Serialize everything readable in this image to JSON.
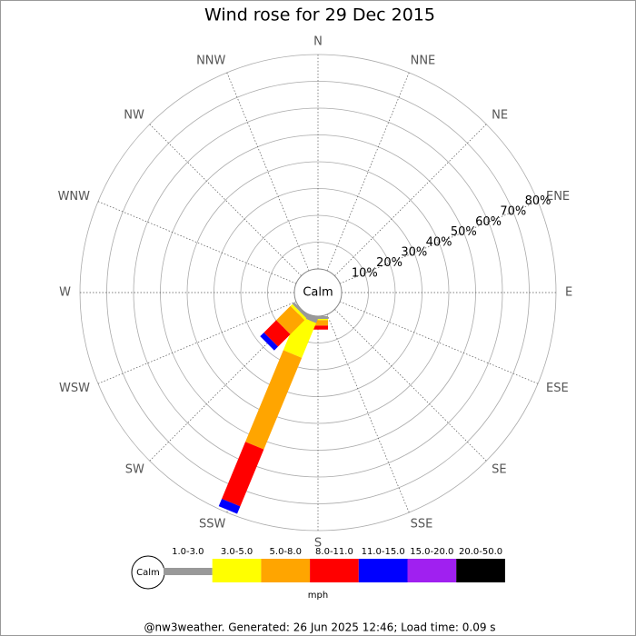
{
  "chart_data": {
    "type": "windrose",
    "title": "Wind rose for 29 Dec 2015",
    "center_label": "Calm",
    "directions": [
      "N",
      "NNE",
      "NE",
      "ENE",
      "E",
      "ESE",
      "SE",
      "SSE",
      "S",
      "SSW",
      "SW",
      "WSW",
      "W",
      "WNW",
      "NW",
      "NNW"
    ],
    "series": [
      {
        "name": "1.0-3.0",
        "color": "#999999",
        "values": [
          0,
          0,
          0,
          0,
          0,
          0,
          0,
          0,
          1,
          2,
          1,
          0,
          0,
          0,
          0,
          0
        ]
      },
      {
        "name": "3.0-5.0",
        "color": "#ffff00",
        "values": [
          0,
          0,
          0,
          0,
          0,
          0,
          0,
          0,
          0.5,
          14,
          1,
          0,
          0,
          0,
          0,
          0
        ]
      },
      {
        "name": "5.0-8.0",
        "color": "#ffa500",
        "values": [
          0,
          0,
          0,
          0,
          0,
          0,
          0,
          0,
          2,
          37,
          7.5,
          0,
          0,
          0,
          0,
          0
        ]
      },
      {
        "name": "8.0-11.0",
        "color": "#ff0000",
        "values": [
          0,
          0,
          0,
          0,
          0,
          0,
          0,
          0,
          1.5,
          23,
          6.5,
          0,
          0,
          0,
          0,
          0
        ]
      },
      {
        "name": "11.0-15.0",
        "color": "#0000ff",
        "values": [
          0,
          0,
          0,
          0,
          0,
          0,
          0,
          0,
          0,
          3,
          2,
          0,
          0,
          0,
          0,
          0
        ]
      },
      {
        "name": "15.0-20.0",
        "color": "#a020f0",
        "values": [
          0,
          0,
          0,
          0,
          0,
          0,
          0,
          0,
          0,
          0,
          0,
          0,
          0,
          0,
          0,
          0
        ]
      },
      {
        "name": "20.0-50.0",
        "color": "#000000",
        "values": [
          0,
          0,
          0,
          0,
          0,
          0,
          0,
          0,
          0,
          0,
          0,
          0,
          0,
          0,
          0,
          0
        ]
      }
    ],
    "rlim": [
      0,
      80
    ],
    "rticks": [
      {
        "value": 10,
        "label": "10%"
      },
      {
        "value": 20,
        "label": "20%"
      },
      {
        "value": 30,
        "label": "30%"
      },
      {
        "value": 40,
        "label": "40%"
      },
      {
        "value": 50,
        "label": "50%"
      },
      {
        "value": 60,
        "label": "60%"
      },
      {
        "value": 70,
        "label": "70%"
      },
      {
        "value": 80,
        "label": "80%"
      }
    ],
    "unit": "mph",
    "footer": "@nw3weather. Generated: 26 Jun 2025 12:46; Load time: 0.09 s"
  }
}
